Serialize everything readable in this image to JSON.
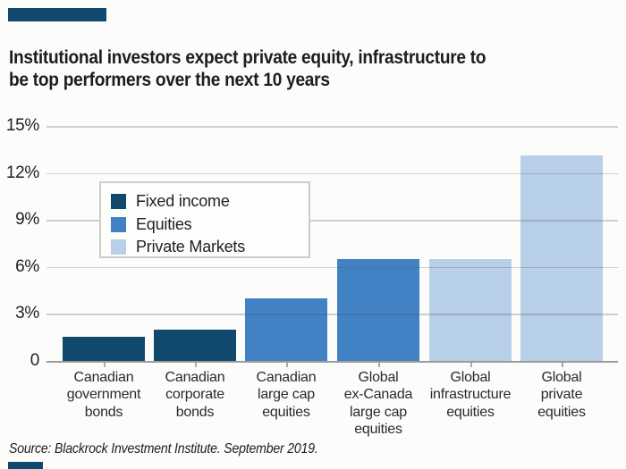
{
  "page": {
    "background": "#fcfdfa",
    "accent_bar_color": "#11486e",
    "title_lines": [
      "Institutional investors expect private equity, infrastructure to",
      "be top performers over the next 10 years"
    ],
    "source": "Source: Blackrock Investment Institute. September 2019."
  },
  "legend": {
    "items": [
      {
        "label": "Fixed income",
        "color": "#11486e"
      },
      {
        "label": "Equities",
        "color": "#4182c4"
      },
      {
        "label": "Private Markets",
        "color": "#b8cfe9"
      }
    ]
  },
  "chart_data": {
    "type": "bar",
    "title": "Institutional investors expect private equity, infrastructure to be top performers over the next 10 years",
    "categories": [
      [
        "Canadian",
        "government",
        "bonds"
      ],
      [
        "Canadian",
        "corporate",
        "bonds"
      ],
      [
        "Canadian",
        "large cap",
        "equities"
      ],
      [
        "Global",
        "ex-Canada",
        "large cap",
        "equities"
      ],
      [
        "Global",
        "infrastructure",
        "equities"
      ],
      [
        "Global",
        "private",
        "equities"
      ]
    ],
    "values": [
      1.5,
      2.0,
      4.0,
      6.5,
      6.5,
      13.1
    ],
    "groups": [
      "Fixed income",
      "Fixed income",
      "Equities",
      "Equities",
      "Private Markets",
      "Private Markets"
    ],
    "xlabel": "",
    "ylabel": "",
    "ylim": [
      0,
      15
    ],
    "yticks": [
      {
        "value": 15,
        "label": "15%"
      },
      {
        "value": 12,
        "label": "12%"
      },
      {
        "value": 9,
        "label": "9%"
      },
      {
        "value": 6,
        "label": "6%"
      },
      {
        "value": 3,
        "label": "3%"
      },
      {
        "value": 0,
        "label": "0"
      }
    ],
    "grid": true,
    "gridlines_over_bars": true,
    "legend_position": "inside-upper-left"
  }
}
